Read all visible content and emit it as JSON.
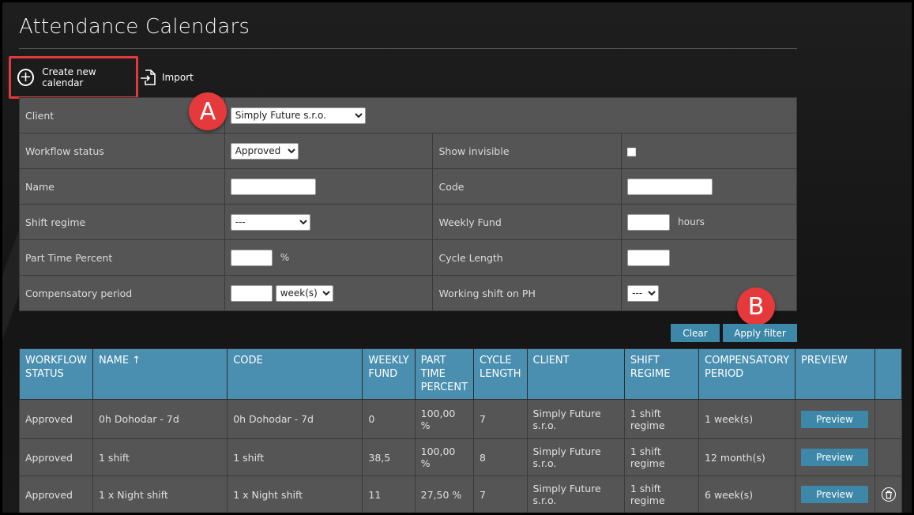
{
  "page": {
    "title": "Attendance Calendars"
  },
  "toolbar": {
    "create_label": "Create new calendar",
    "import_label": "Import"
  },
  "filters": {
    "client": {
      "label": "Client",
      "value": "Simply Future s.r.o."
    },
    "workflow_status": {
      "label": "Workflow status",
      "value": "Approved"
    },
    "show_invisible": {
      "label": "Show invisible"
    },
    "name": {
      "label": "Name",
      "value": ""
    },
    "code": {
      "label": "Code",
      "value": ""
    },
    "shift_regime": {
      "label": "Shift regime",
      "value": "---"
    },
    "weekly_fund": {
      "label": "Weekly Fund",
      "value": "",
      "unit": "hours"
    },
    "part_time_percent": {
      "label": "Part Time Percent",
      "value": "",
      "unit": "%"
    },
    "cycle_length": {
      "label": "Cycle Length",
      "value": ""
    },
    "compensatory_period": {
      "label": "Compensatory period",
      "value": "",
      "unit_value": "week(s)"
    },
    "working_shift_ph": {
      "label": "Working shift on PH",
      "value": "---"
    }
  },
  "actions": {
    "clear_label": "Clear",
    "apply_label": "Apply filter"
  },
  "annotations": {
    "a": "A",
    "b": "B"
  },
  "table": {
    "headers": {
      "workflow_status": "WORKFLOW STATUS",
      "name": "NAME ↑",
      "code": "CODE",
      "weekly_fund": "WEEKLY FUND",
      "part_time_percent": "PART TIME PERCENT",
      "cycle_length": "CYCLE LENGTH",
      "client": "CLIENT",
      "shift_regime": "SHIFT REGIME",
      "compensatory_period": "COMPENSATORY PERIOD",
      "preview": "PREVIEW"
    },
    "preview_label": "Preview",
    "rows": [
      {
        "status": "Approved",
        "name": "0h Dohodar - 7d",
        "code": "0h Dohodar - 7d",
        "fund": "0",
        "percent": "100,00 %",
        "cycle": "7",
        "client": "Simply Future s.r.o.",
        "regime": "1 shift regime",
        "period": "1 week(s)"
      },
      {
        "status": "Approved",
        "name": "1 shift",
        "code": "1 shift",
        "fund": "38,5",
        "percent": "100,00 %",
        "cycle": "8",
        "client": "Simply Future s.r.o.",
        "regime": "1 shift regime",
        "period": "12 month(s)"
      },
      {
        "status": "Approved",
        "name": "1 x Night shift",
        "code": "1 x Night shift",
        "fund": "11",
        "percent": "27,50 %",
        "cycle": "7",
        "client": "Simply Future s.r.o.",
        "regime": "1 shift regime",
        "period": "6 week(s)"
      }
    ]
  },
  "colors": {
    "accent": "#3d88a8",
    "header": "#4a8fb0",
    "highlight": "#e5393b",
    "panel": "#555555"
  }
}
